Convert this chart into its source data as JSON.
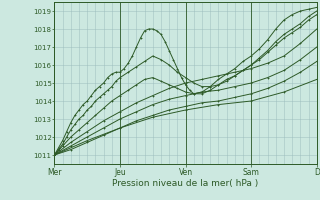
{
  "xlabel": "Pression niveau de la mer( hPa )",
  "bg_color": "#cce8e0",
  "grid_color_major": "#99bbbb",
  "grid_color_minor": "#bbdddd",
  "line_color": "#2d5a27",
  "ylim": [
    1010.5,
    1019.5
  ],
  "yticks": [
    1011,
    1012,
    1013,
    1014,
    1015,
    1016,
    1017,
    1018,
    1019
  ],
  "day_labels": [
    "Mer",
    "Jeu",
    "Ven",
    "Sam",
    "D"
  ],
  "day_positions": [
    0,
    48,
    96,
    144,
    192
  ],
  "total_hours": 192,
  "series": [
    {
      "x": [
        0,
        3,
        6,
        9,
        12,
        15,
        18,
        21,
        24,
        27,
        30,
        33,
        36,
        39,
        42,
        45,
        48,
        51,
        54,
        57,
        60,
        63,
        66,
        69,
        72,
        75,
        78,
        81,
        84,
        87,
        90,
        93,
        96,
        99,
        102,
        108,
        114,
        120,
        126,
        132,
        138,
        144,
        150,
        156,
        162,
        168,
        174,
        180,
        186,
        192
      ],
      "y": [
        1011.0,
        1011.4,
        1011.8,
        1012.3,
        1012.8,
        1013.2,
        1013.5,
        1013.8,
        1014.0,
        1014.3,
        1014.6,
        1014.8,
        1015.0,
        1015.3,
        1015.5,
        1015.6,
        1015.6,
        1015.8,
        1016.1,
        1016.5,
        1017.0,
        1017.5,
        1017.9,
        1018.0,
        1018.0,
        1017.9,
        1017.7,
        1017.3,
        1016.8,
        1016.3,
        1015.8,
        1015.3,
        1014.9,
        1014.6,
        1014.4,
        1014.5,
        1014.8,
        1015.2,
        1015.5,
        1015.8,
        1016.2,
        1016.5,
        1016.9,
        1017.4,
        1018.0,
        1018.5,
        1018.8,
        1019.0,
        1019.1,
        1019.2
      ]
    },
    {
      "x": [
        0,
        3,
        6,
        9,
        12,
        15,
        18,
        21,
        24,
        27,
        30,
        33,
        36,
        39,
        42,
        45,
        48,
        54,
        60,
        66,
        72,
        78,
        84,
        90,
        96,
        102,
        108,
        114,
        120,
        126,
        132,
        138,
        144,
        150,
        156,
        162,
        168,
        174,
        180,
        186,
        192
      ],
      "y": [
        1011.0,
        1011.3,
        1011.6,
        1012.0,
        1012.4,
        1012.7,
        1013.0,
        1013.2,
        1013.5,
        1013.7,
        1014.0,
        1014.2,
        1014.4,
        1014.6,
        1014.8,
        1015.1,
        1015.3,
        1015.6,
        1015.9,
        1016.2,
        1016.5,
        1016.3,
        1016.0,
        1015.6,
        1015.3,
        1015.0,
        1014.8,
        1014.8,
        1014.9,
        1015.1,
        1015.4,
        1015.7,
        1016.0,
        1016.4,
        1016.8,
        1017.3,
        1017.7,
        1018.0,
        1018.3,
        1018.7,
        1019.0
      ]
    },
    {
      "x": [
        0,
        6,
        12,
        18,
        24,
        30,
        36,
        42,
        48,
        54,
        60,
        66,
        72,
        78,
        84,
        90,
        96,
        102,
        108,
        114,
        120,
        126,
        132,
        138,
        144,
        150,
        156,
        162,
        168,
        174,
        180,
        186,
        192
      ],
      "y": [
        1011.0,
        1011.5,
        1012.0,
        1012.4,
        1012.8,
        1013.2,
        1013.6,
        1014.0,
        1014.3,
        1014.6,
        1014.9,
        1015.2,
        1015.3,
        1015.1,
        1014.9,
        1014.7,
        1014.5,
        1014.4,
        1014.4,
        1014.6,
        1014.9,
        1015.2,
        1015.4,
        1015.7,
        1016.0,
        1016.3,
        1016.7,
        1017.1,
        1017.5,
        1017.8,
        1018.1,
        1018.5,
        1018.8
      ]
    },
    {
      "x": [
        0,
        12,
        24,
        36,
        48,
        60,
        72,
        84,
        96,
        108,
        120,
        132,
        144,
        156,
        168,
        180,
        192
      ],
      "y": [
        1011.0,
        1011.7,
        1012.3,
        1012.9,
        1013.4,
        1013.9,
        1014.3,
        1014.7,
        1015.0,
        1015.2,
        1015.4,
        1015.6,
        1015.8,
        1016.1,
        1016.5,
        1017.2,
        1018.0
      ]
    },
    {
      "x": [
        0,
        12,
        24,
        36,
        48,
        60,
        72,
        84,
        96,
        108,
        120,
        132,
        144,
        156,
        168,
        180,
        192
      ],
      "y": [
        1011.0,
        1011.5,
        1012.0,
        1012.5,
        1013.0,
        1013.4,
        1013.8,
        1014.1,
        1014.3,
        1014.5,
        1014.6,
        1014.8,
        1015.0,
        1015.3,
        1015.7,
        1016.3,
        1017.0
      ]
    },
    {
      "x": [
        0,
        12,
        24,
        36,
        48,
        60,
        72,
        84,
        96,
        108,
        120,
        132,
        144,
        156,
        168,
        180,
        192
      ],
      "y": [
        1011.0,
        1011.3,
        1011.7,
        1012.1,
        1012.5,
        1012.9,
        1013.2,
        1013.5,
        1013.7,
        1013.9,
        1014.0,
        1014.2,
        1014.4,
        1014.7,
        1015.1,
        1015.6,
        1016.2
      ]
    },
    {
      "x": [
        0,
        24,
        48,
        72,
        96,
        120,
        144,
        168,
        192
      ],
      "y": [
        1011.0,
        1011.8,
        1012.5,
        1013.1,
        1013.5,
        1013.8,
        1014.0,
        1014.5,
        1015.2
      ]
    }
  ]
}
